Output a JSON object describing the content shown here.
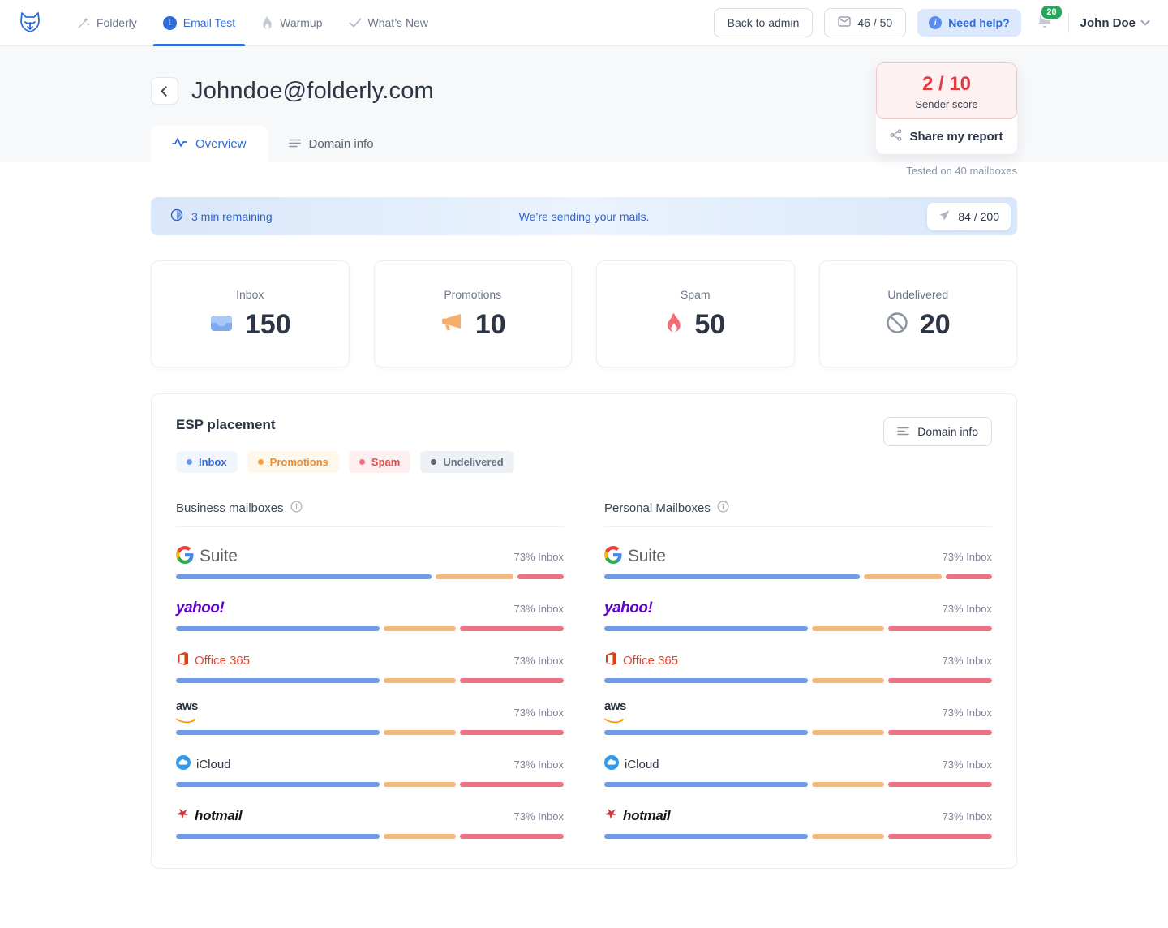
{
  "colors": {
    "accent_blue": "#2F6BDB",
    "score_red": "#E23B40",
    "badge_green": "#2BA55D",
    "bar_blue": "#6F9BE6",
    "bar_orange": "#F6B77C",
    "bar_red": "#ED7283",
    "legend_inbox_bg": "#F0F5FE",
    "legend_promotions_bg": "#FEF7EC",
    "legend_spam_bg": "#FDEFF0",
    "legend_undelivered_bg": "#EDF0F5"
  },
  "nav": {
    "items": [
      {
        "label": "Folderly",
        "icon": "wand-icon",
        "active": false
      },
      {
        "label": "Email Test",
        "icon": "exclamation-circle-icon",
        "active": true
      },
      {
        "label": "Warmup",
        "icon": "flame-icon",
        "active": false
      },
      {
        "label": "What’s New",
        "icon": "check-icon",
        "active": false
      }
    ],
    "back_to_admin_label": "Back to admin",
    "credits_label": "46 / 50",
    "need_help_label": "Need help?",
    "notification_count": "20",
    "user_name": "John Doe"
  },
  "header": {
    "email_title": "Johndoe@folderly.com",
    "sender_score_value": "2 / 10",
    "sender_score_label": "Sender score",
    "share_label": "Share my report",
    "tested_label": "Tested on 40 mailboxes"
  },
  "tabs": [
    {
      "label": "Overview",
      "icon": "pulse-icon",
      "active": true
    },
    {
      "label": "Domain info",
      "icon": "lines-icon",
      "active": false
    }
  ],
  "banner": {
    "time_remaining": "3 min remaining",
    "message": "We’re sending your mails.",
    "progress": "84 / 200"
  },
  "stats": [
    {
      "label": "Inbox",
      "value": "150",
      "icon": "inbox-tray-icon"
    },
    {
      "label": "Promotions",
      "value": "10",
      "icon": "megaphone-icon"
    },
    {
      "label": "Spam",
      "value": "50",
      "icon": "spam-flame-icon"
    },
    {
      "label": "Undelivered",
      "value": "20",
      "icon": "prohibited-icon"
    }
  ],
  "esp": {
    "title": "ESP placement",
    "domain_info_label": "Domain info",
    "legend": [
      {
        "label": "Inbox",
        "dot": "#6B9BE8",
        "text": "#2F6BDB",
        "bg_key": "legend_inbox_bg"
      },
      {
        "label": "Promotions",
        "dot": "#F59E42",
        "text": "#EF8B2D",
        "bg_key": "legend_promotions_bg"
      },
      {
        "label": "Spam",
        "dot": "#F07080",
        "text": "#E5484D",
        "bg_key": "legend_spam_bg"
      },
      {
        "label": "Undelivered",
        "dot": "#5A6572",
        "text": "#697386",
        "bg_key": "legend_undelivered_bg"
      }
    ],
    "columns": [
      {
        "title": "Business mailboxes",
        "providers": [
          {
            "name": "G Suite",
            "logo": "gsuite",
            "result": "73% Inbox",
            "segments": [
              66,
              20,
              12
            ]
          },
          {
            "name": "yahoo!",
            "logo": "yahoo",
            "result": "73% Inbox",
            "segments": [
              53,
              19,
              27
            ]
          },
          {
            "name": "Office 365",
            "logo": "office365",
            "result": "73% Inbox",
            "segments": [
              53,
              19,
              27
            ]
          },
          {
            "name": "aws",
            "logo": "aws",
            "result": "73% Inbox",
            "segments": [
              53,
              19,
              27
            ]
          },
          {
            "name": "iCloud",
            "logo": "icloud",
            "result": "73% Inbox",
            "segments": [
              53,
              19,
              27
            ]
          },
          {
            "name": "hotmail",
            "logo": "hotmail",
            "result": "73% Inbox",
            "segments": [
              53,
              19,
              27
            ]
          }
        ]
      },
      {
        "title": "Personal Mailboxes",
        "providers": [
          {
            "name": "G Suite",
            "logo": "gsuite",
            "result": "73% Inbox",
            "segments": [
              66,
              20,
              12
            ]
          },
          {
            "name": "yahoo!",
            "logo": "yahoo",
            "result": "73% Inbox",
            "segments": [
              53,
              19,
              27
            ]
          },
          {
            "name": "Office 365",
            "logo": "office365",
            "result": "73% Inbox",
            "segments": [
              53,
              19,
              27
            ]
          },
          {
            "name": "aws",
            "logo": "aws",
            "result": "73% Inbox",
            "segments": [
              53,
              19,
              27
            ]
          },
          {
            "name": "iCloud",
            "logo": "icloud",
            "result": "73% Inbox",
            "segments": [
              53,
              19,
              27
            ]
          },
          {
            "name": "hotmail",
            "logo": "hotmail",
            "result": "73% Inbox",
            "segments": [
              53,
              19,
              27
            ]
          }
        ]
      }
    ]
  }
}
